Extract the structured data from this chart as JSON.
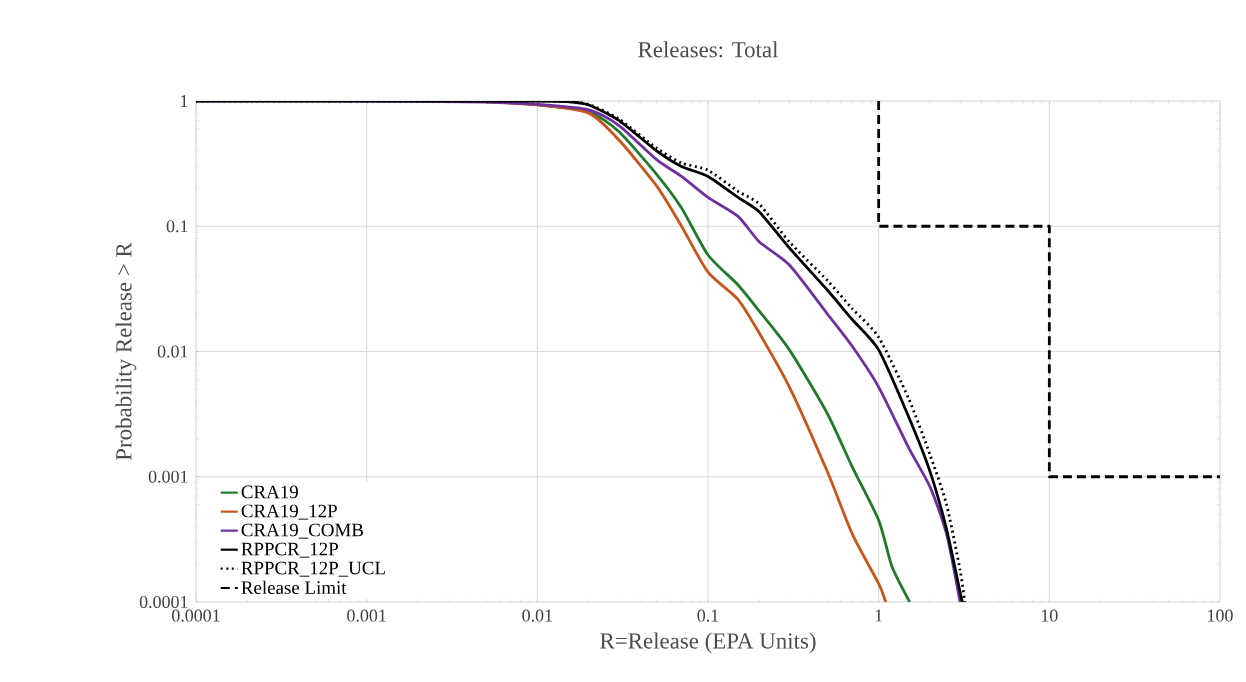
{
  "chart_data": {
    "type": "line",
    "title": "Releases: Total",
    "xlabel": "R=Release (EPA Units)",
    "ylabel": "Probability Release > R",
    "log": "xy",
    "grid": true,
    "legend": "bottom left",
    "marker": "none",
    "xlim": [
      0.0001,
      100
    ],
    "ylim": [
      0.0001,
      1
    ],
    "xticks": [
      0.0001,
      0.001,
      0.01,
      0.1,
      1,
      10,
      100
    ],
    "yticks": [
      0.0001,
      0.001,
      0.01,
      0.1,
      1
    ],
    "series": [
      {
        "name": "CRA19",
        "color": "#217a2b",
        "line_style": "solid",
        "x": [
          0.01,
          0.02,
          0.03,
          0.05,
          0.07,
          0.1,
          0.15,
          0.2,
          0.3,
          0.5,
          0.7,
          1,
          1.2,
          1.52
        ],
        "values": [
          0.93,
          0.82,
          0.57,
          0.26,
          0.14,
          0.059,
          0.034,
          0.021,
          0.0103,
          0.0032,
          0.0012,
          0.00045,
          0.00019,
          0.0001
        ]
      },
      {
        "name": "CRA19_12P",
        "color": "#c8561a",
        "line_style": "solid",
        "x": [
          0.005,
          0.01,
          0.02,
          0.03,
          0.05,
          0.07,
          0.1,
          0.15,
          0.2,
          0.3,
          0.5,
          0.7,
          1,
          1.1
        ],
        "values": [
          0.98,
          0.93,
          0.8,
          0.49,
          0.21,
          0.1,
          0.043,
          0.026,
          0.014,
          0.0052,
          0.0011,
          0.00035,
          0.00014,
          0.0001
        ]
      },
      {
        "name": "CRA19_COMB",
        "color": "#7030a0",
        "line_style": "solid",
        "x": [
          0.0001,
          0.001,
          0.005,
          0.01,
          0.02,
          0.03,
          0.05,
          0.07,
          0.1,
          0.15,
          0.2,
          0.3,
          0.5,
          0.7,
          1,
          1.5,
          2,
          2.5,
          3
        ],
        "values": [
          1,
          1,
          0.98,
          0.94,
          0.85,
          0.64,
          0.34,
          0.25,
          0.17,
          0.12,
          0.075,
          0.049,
          0.02,
          0.011,
          0.0052,
          0.0017,
          0.00083,
          0.00035,
          0.0001
        ]
      },
      {
        "name": "RPPCR_12P",
        "color": "#000000",
        "line_style": "solid",
        "x": [
          0.0001,
          0.001,
          0.01,
          0.015,
          0.02,
          0.03,
          0.05,
          0.07,
          0.1,
          0.15,
          0.2,
          0.3,
          0.5,
          0.7,
          1,
          1.5,
          2,
          2.5,
          3,
          3.1
        ],
        "values": [
          1,
          1,
          1,
          0.99,
          0.93,
          0.7,
          0.4,
          0.3,
          0.25,
          0.17,
          0.13,
          0.067,
          0.031,
          0.018,
          0.0103,
          0.003,
          0.0011,
          0.00038,
          0.00012,
          0.0001
        ]
      },
      {
        "name": "RPPCR_12P_UCL",
        "color": "#000000",
        "line_style": "dotted",
        "x": [
          0.0001,
          0.001,
          0.01,
          0.015,
          0.02,
          0.03,
          0.05,
          0.07,
          0.1,
          0.15,
          0.2,
          0.3,
          0.5,
          0.7,
          1,
          1.5,
          2,
          2.5,
          3,
          3.2
        ],
        "values": [
          1,
          1,
          1,
          0.99,
          0.94,
          0.72,
          0.42,
          0.32,
          0.28,
          0.19,
          0.15,
          0.075,
          0.037,
          0.022,
          0.013,
          0.0042,
          0.0015,
          0.0006,
          0.00018,
          0.0001
        ]
      },
      {
        "name": "Release Limit",
        "color": "#000000",
        "line_style": "dashed",
        "x": [
          1,
          1,
          10,
          10,
          100
        ],
        "values": [
          1,
          0.1,
          0.1,
          0.001,
          0.001
        ]
      }
    ]
  }
}
